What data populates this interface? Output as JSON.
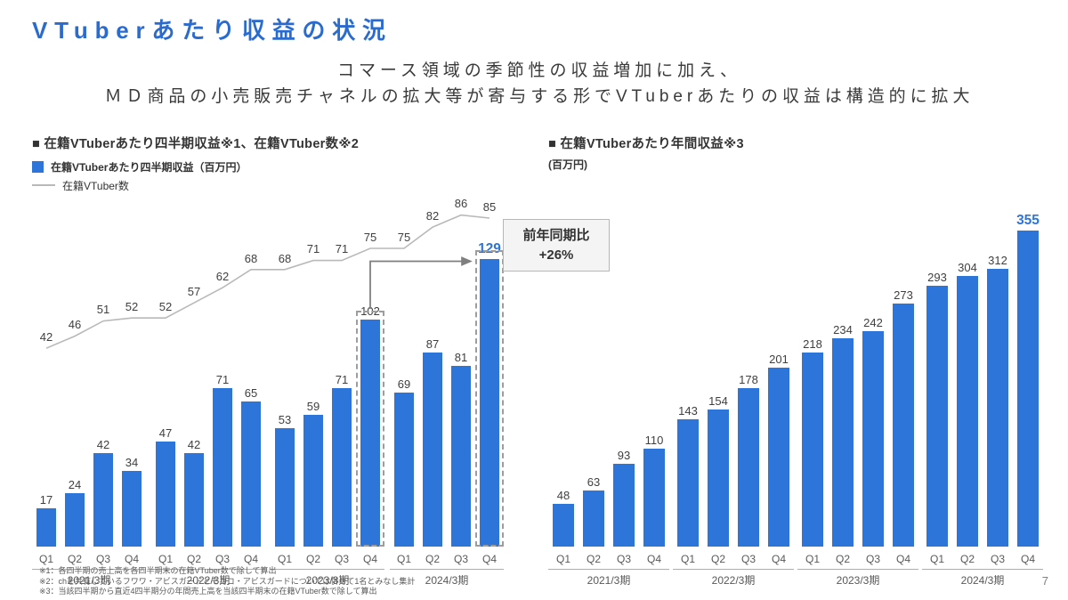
{
  "page": {
    "title": "VTuberあたり収益の状況",
    "subtitle_line1": "コマース領域の季節性の収益増加に加え、",
    "subtitle_line2": "ＭＤ商品の小売販売チャネルの拡大等が寄与する形でVTuberあたりの収益は構造的に拡大",
    "page_number": "7",
    "accent_color": "#2e75d9"
  },
  "footnotes": [
    "※1：各四半期の売上高を各四半期末の在籍VTuber数で除して算出",
    "※2：chを共有しているフワワ・アビスガードとモココ・アビスガードについては併せて1名とみなし集計",
    "※3：当該四半期から直近4四半期分の年間売上高を当該四半期末の在籍VTuber数で除して算出"
  ],
  "chart_data": [
    {
      "type": "bar",
      "title": "■ 在籍VTuberあたり四半期収益※1、在籍VTuber数※2",
      "legend": [
        {
          "label": "在籍VTuberあたり四半期収益（百万円）",
          "color": "#2e75d9",
          "kind": "bar"
        },
        {
          "label": "在籍VTuber数",
          "color": "#b9b9b9",
          "kind": "line"
        }
      ],
      "categories": [
        "Q1",
        "Q2",
        "Q3",
        "Q4",
        "Q1",
        "Q2",
        "Q3",
        "Q4",
        "Q1",
        "Q2",
        "Q3",
        "Q4",
        "Q1",
        "Q2",
        "Q3",
        "Q4"
      ],
      "year_groups": [
        "2021/3期",
        "2022/3期",
        "2023/3期",
        "2024/3期"
      ],
      "bars": {
        "name": "在籍VTuberあたり四半期収益（百万円）",
        "values": [
          17,
          24,
          42,
          34,
          47,
          42,
          71,
          65,
          53,
          59,
          71,
          102,
          69,
          87,
          81,
          129
        ]
      },
      "line": {
        "name": "在籍VTuber数",
        "values": [
          42,
          46,
          51,
          52,
          52,
          57,
          62,
          68,
          68,
          71,
          71,
          75,
          75,
          82,
          86,
          85
        ]
      },
      "emphasis_index": 15,
      "highlight_boxes": [
        11,
        15
      ],
      "annotation": {
        "line1": "前年同期比",
        "line2": "+26%"
      },
      "bar_color": "#2e75d9",
      "line_color": "#b9b9b9",
      "legend_position": "top-left",
      "grid": false
    },
    {
      "type": "bar",
      "title": "■ 在籍VTuberあたり年間収益※3",
      "unit": "(百万円)",
      "categories": [
        "Q1",
        "Q2",
        "Q3",
        "Q4",
        "Q1",
        "Q2",
        "Q3",
        "Q4",
        "Q1",
        "Q2",
        "Q3",
        "Q4",
        "Q1",
        "Q2",
        "Q3",
        "Q4"
      ],
      "year_groups": [
        "2021/3期",
        "2022/3期",
        "2023/3期",
        "2024/3期"
      ],
      "bars": {
        "name": "在籍VTuberあたり年間収益（百万円）",
        "values": [
          48,
          63,
          93,
          110,
          143,
          154,
          178,
          201,
          218,
          234,
          242,
          273,
          293,
          304,
          312,
          355
        ]
      },
      "emphasis_index": 15,
      "bar_color": "#2e75d9",
      "grid": false
    }
  ]
}
